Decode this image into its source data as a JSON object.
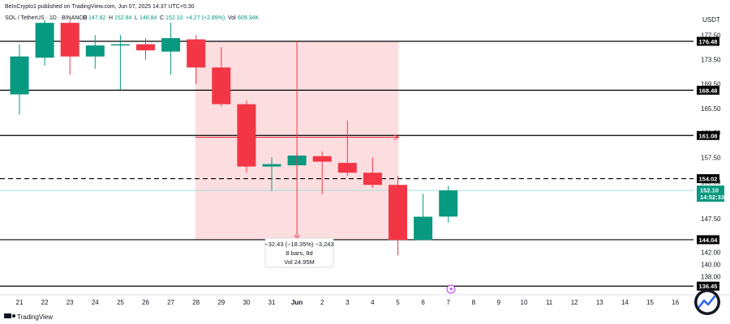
{
  "header": {
    "credit": "BeInCrypto1 published on TradingView.com, Jun 07, 2025 14:37 UTC+5:30",
    "symbol": "SOL / TetherUS · 1D · BINANCE",
    "o_label": "O",
    "o_value": "147.82",
    "h_label": "H",
    "h_value": "152.84",
    "l_label": "L",
    "l_value": "146.84",
    "c_label": "C",
    "c_value": "152.10",
    "change": "+4.27 (+2.89%)",
    "vol_label": "Vol",
    "vol_value": "609.34K"
  },
  "currency": "USDT",
  "brand": "TradingView",
  "colors": {
    "up": "#089981",
    "down": "#f23645",
    "range_fill": "#fdd8da",
    "last_price_line": "#a8dcd3",
    "level_line": "#000000"
  },
  "measure": {
    "change_text": "−32.43 (−18.35%) −3,243",
    "bars_text": "8 bars, 8d",
    "vol_text": "Vol 24.95M"
  },
  "chart_data": {
    "type": "candlestick",
    "x_labels": [
      "21",
      "22",
      "23",
      "24",
      "25",
      "26",
      "27",
      "28",
      "29",
      "30",
      "31",
      "Jun",
      "2",
      "3",
      "4",
      "5",
      "6",
      "7",
      "8",
      "9",
      "10",
      "11",
      "12",
      "13",
      "14",
      "15",
      "16"
    ],
    "candles": [
      {
        "x": "21",
        "o": 167.8,
        "h": 176.0,
        "l": 164.5,
        "c": 174.0
      },
      {
        "x": "22",
        "o": 173.8,
        "h": 180.0,
        "l": 172.5,
        "c": 179.5
      },
      {
        "x": "23",
        "o": 179.5,
        "h": 180.0,
        "l": 171.0,
        "c": 174.0
      },
      {
        "x": "24",
        "o": 174.0,
        "h": 177.5,
        "l": 172.0,
        "c": 175.8
      },
      {
        "x": "25",
        "o": 175.8,
        "h": 177.5,
        "l": 168.5,
        "c": 176.0
      },
      {
        "x": "26",
        "o": 176.0,
        "h": 177.0,
        "l": 173.5,
        "c": 175.0
      },
      {
        "x": "27",
        "o": 174.8,
        "h": 179.5,
        "l": 171.0,
        "c": 177.0
      },
      {
        "x": "28",
        "o": 176.8,
        "h": 177.5,
        "l": 169.5,
        "c": 172.2
      },
      {
        "x": "29",
        "o": 172.2,
        "h": 175.5,
        "l": 165.8,
        "c": 166.2
      },
      {
        "x": "30",
        "o": 166.2,
        "h": 166.8,
        "l": 155.0,
        "c": 156.0
      },
      {
        "x": "31",
        "o": 156.0,
        "h": 157.5,
        "l": 152.0,
        "c": 156.4
      },
      {
        "x": "Jun",
        "o": 156.2,
        "h": 158.5,
        "l": 153.5,
        "c": 157.8
      },
      {
        "x": "2",
        "o": 157.7,
        "h": 158.5,
        "l": 151.5,
        "c": 156.8
      },
      {
        "x": "3",
        "o": 156.6,
        "h": 163.5,
        "l": 154.5,
        "c": 155.0
      },
      {
        "x": "4",
        "o": 155.0,
        "h": 157.5,
        "l": 152.5,
        "c": 153.0
      },
      {
        "x": "5",
        "o": 153.0,
        "h": 154.5,
        "l": 141.5,
        "c": 144.0
      },
      {
        "x": "6",
        "o": 144.0,
        "h": 151.5,
        "l": 144.0,
        "c": 147.8
      },
      {
        "x": "7",
        "o": 147.82,
        "h": 152.84,
        "l": 146.84,
        "c": 152.1
      }
    ],
    "y_ticks": [
      "177.50",
      "173.50",
      "169.50",
      "165.50",
      "161.50",
      "157.50",
      "153.50",
      "147.50",
      "142.00",
      "140.00",
      "138.00"
    ],
    "levels": [
      {
        "value": 176.48,
        "label": "176.48",
        "style": "solid"
      },
      {
        "value": 168.48,
        "label": "168.48",
        "style": "solid"
      },
      {
        "value": 161.08,
        "label": "161.08",
        "style": "solid"
      },
      {
        "value": 154.02,
        "label": "154.02",
        "style": "dashed"
      },
      {
        "value": 144.04,
        "label": "144.04",
        "style": "solid"
      },
      {
        "value": 136.45,
        "label": "136.45",
        "style": "solid"
      }
    ],
    "last_price": {
      "value": 152.1,
      "label": "152.10",
      "countdown": "14:52:33"
    },
    "measure_range": {
      "from_x": "28",
      "to_x": "5",
      "top": 176.48,
      "bottom": 144.04
    }
  }
}
